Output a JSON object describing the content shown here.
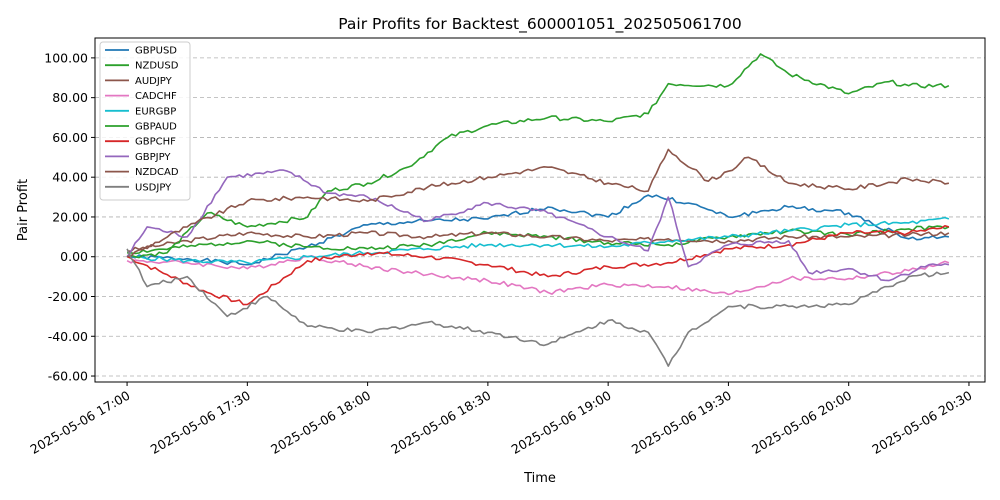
{
  "chart_data": {
    "type": "line",
    "title": "Pair Profits for Backtest_600001051_202505061700",
    "xlabel": "Time",
    "ylabel": "Pair Profit",
    "x_unit": "minutes",
    "ylim": [
      -63,
      110
    ],
    "xlim": [
      "2025-05-06 16:52",
      "2025-05-06 20:34"
    ],
    "grid": "horizontal dashed",
    "legend_position": "top-left",
    "x_ticks": [
      "2025-05-06 17:00",
      "2025-05-06 17:30",
      "2025-05-06 18:00",
      "2025-05-06 18:30",
      "2025-05-06 19:00",
      "2025-05-06 19:30",
      "2025-05-06 20:00",
      "2025-05-06 20:30"
    ],
    "y_ticks": [
      "100.00",
      "80.00",
      "60.00",
      "40.00",
      "20.00",
      "0.00",
      "-20.00",
      "-40.00",
      "-60.00"
    ],
    "series": [
      {
        "name": "GBPUSD",
        "color": "#1f77b4",
        "points": [
          [
            "2025-05-06 17:00",
            0
          ],
          [
            "2025-05-06 17:15",
            -1
          ],
          [
            "2025-05-06 17:30",
            -4
          ],
          [
            "2025-05-06 17:45",
            5
          ],
          [
            "2025-05-06 18:00",
            16
          ],
          [
            "2025-05-06 18:15",
            18
          ],
          [
            "2025-05-06 18:30",
            19
          ],
          [
            "2025-05-06 18:45",
            25
          ],
          [
            "2025-05-06 19:00",
            20
          ],
          [
            "2025-05-06 19:10",
            31
          ],
          [
            "2025-05-06 19:20",
            27
          ],
          [
            "2025-05-06 19:30",
            20
          ],
          [
            "2025-05-06 19:45",
            25
          ],
          [
            "2025-05-06 20:00",
            22
          ],
          [
            "2025-05-06 20:15",
            9
          ],
          [
            "2025-05-06 20:25",
            10
          ]
        ]
      },
      {
        "name": "NZDUSD",
        "color": "#2ca02c",
        "points": [
          [
            "2025-05-06 17:00",
            2
          ],
          [
            "2025-05-06 17:15",
            5
          ],
          [
            "2025-05-06 17:30",
            8
          ],
          [
            "2025-05-06 17:45",
            5
          ],
          [
            "2025-05-06 18:00",
            4
          ],
          [
            "2025-05-06 18:15",
            6
          ],
          [
            "2025-05-06 18:30",
            12
          ],
          [
            "2025-05-06 18:45",
            10
          ],
          [
            "2025-05-06 19:00",
            7
          ],
          [
            "2025-05-06 19:15",
            6
          ],
          [
            "2025-05-06 19:30",
            10
          ],
          [
            "2025-05-06 19:45",
            13
          ],
          [
            "2025-05-06 20:00",
            11
          ],
          [
            "2025-05-06 20:15",
            14
          ],
          [
            "2025-05-06 20:25",
            15
          ]
        ]
      },
      {
        "name": "AUDJPY",
        "color": "#8c564b",
        "points": [
          [
            "2025-05-06 17:00",
            3
          ],
          [
            "2025-05-06 17:15",
            8
          ],
          [
            "2025-05-06 17:30",
            12
          ],
          [
            "2025-05-06 17:45",
            10
          ],
          [
            "2025-05-06 18:00",
            12
          ],
          [
            "2025-05-06 18:15",
            10
          ],
          [
            "2025-05-06 18:30",
            12
          ],
          [
            "2025-05-06 18:45",
            10
          ],
          [
            "2025-05-06 19:00",
            8
          ],
          [
            "2025-05-06 19:15",
            9
          ],
          [
            "2025-05-06 19:30",
            8
          ],
          [
            "2025-05-06 19:45",
            10
          ],
          [
            "2025-05-06 20:00",
            10
          ],
          [
            "2025-05-06 20:15",
            11
          ],
          [
            "2025-05-06 20:25",
            12
          ]
        ]
      },
      {
        "name": "CADCHF",
        "color": "#e377c2",
        "points": [
          [
            "2025-05-06 17:00",
            -2
          ],
          [
            "2025-05-06 17:15",
            -3
          ],
          [
            "2025-05-06 17:30",
            -6
          ],
          [
            "2025-05-06 17:45",
            0
          ],
          [
            "2025-05-06 18:00",
            -5
          ],
          [
            "2025-05-06 18:15",
            -9
          ],
          [
            "2025-05-06 18:30",
            -12
          ],
          [
            "2025-05-06 18:45",
            -18
          ],
          [
            "2025-05-06 19:00",
            -14
          ],
          [
            "2025-05-06 19:15",
            -15
          ],
          [
            "2025-05-06 19:30",
            -19
          ],
          [
            "2025-05-06 19:45",
            -11
          ],
          [
            "2025-05-06 20:00",
            -11
          ],
          [
            "2025-05-06 20:15",
            -7
          ],
          [
            "2025-05-06 20:25",
            -3
          ]
        ]
      },
      {
        "name": "EURGBP",
        "color": "#17becf",
        "points": [
          [
            "2025-05-06 17:00",
            0
          ],
          [
            "2025-05-06 17:15",
            -2
          ],
          [
            "2025-05-06 17:30",
            -3
          ],
          [
            "2025-05-06 17:45",
            0
          ],
          [
            "2025-05-06 18:00",
            2
          ],
          [
            "2025-05-06 18:15",
            4
          ],
          [
            "2025-05-06 18:30",
            6
          ],
          [
            "2025-05-06 18:45",
            6
          ],
          [
            "2025-05-06 19:00",
            5
          ],
          [
            "2025-05-06 19:15",
            8
          ],
          [
            "2025-05-06 19:30",
            10
          ],
          [
            "2025-05-06 19:45",
            13
          ],
          [
            "2025-05-06 20:00",
            16
          ],
          [
            "2025-05-06 20:15",
            17
          ],
          [
            "2025-05-06 20:25",
            19
          ]
        ]
      },
      {
        "name": "GBPAUD",
        "color": "#2ca02c",
        "points": [
          [
            "2025-05-06 17:00",
            0
          ],
          [
            "2025-05-06 17:10",
            2
          ],
          [
            "2025-05-06 17:20",
            22
          ],
          [
            "2025-05-06 17:30",
            15
          ],
          [
            "2025-05-06 17:45",
            20
          ],
          [
            "2025-05-06 17:50",
            33
          ],
          [
            "2025-05-06 18:00",
            37
          ],
          [
            "2025-05-06 18:10",
            45
          ],
          [
            "2025-05-06 18:20",
            60
          ],
          [
            "2025-05-06 18:30",
            66
          ],
          [
            "2025-05-06 18:45",
            70
          ],
          [
            "2025-05-06 19:00",
            68
          ],
          [
            "2025-05-06 19:10",
            72
          ],
          [
            "2025-05-06 19:15",
            87
          ],
          [
            "2025-05-06 19:30",
            86
          ],
          [
            "2025-05-06 19:38",
            102
          ],
          [
            "2025-05-06 19:45",
            92
          ],
          [
            "2025-05-06 20:00",
            82
          ],
          [
            "2025-05-06 20:10",
            88
          ],
          [
            "2025-05-06 20:15",
            86
          ],
          [
            "2025-05-06 20:25",
            86
          ]
        ]
      },
      {
        "name": "GBPCHF",
        "color": "#d62728",
        "points": [
          [
            "2025-05-06 17:00",
            0
          ],
          [
            "2025-05-06 17:10",
            -9
          ],
          [
            "2025-05-06 17:20",
            -18
          ],
          [
            "2025-05-06 17:30",
            -24
          ],
          [
            "2025-05-06 17:45",
            -2
          ],
          [
            "2025-05-06 18:00",
            2
          ],
          [
            "2025-05-06 18:15",
            0
          ],
          [
            "2025-05-06 18:30",
            -4
          ],
          [
            "2025-05-06 18:45",
            -10
          ],
          [
            "2025-05-06 19:00",
            -5
          ],
          [
            "2025-05-06 19:15",
            -3
          ],
          [
            "2025-05-06 19:30",
            4
          ],
          [
            "2025-05-06 19:45",
            6
          ],
          [
            "2025-05-06 20:00",
            12
          ],
          [
            "2025-05-06 20:15",
            12
          ],
          [
            "2025-05-06 20:25",
            15
          ]
        ]
      },
      {
        "name": "GBPJPY",
        "color": "#9467bd",
        "points": [
          [
            "2025-05-06 17:00",
            0
          ],
          [
            "2025-05-06 17:05",
            15
          ],
          [
            "2025-05-06 17:15",
            10
          ],
          [
            "2025-05-06 17:25",
            40
          ],
          [
            "2025-05-06 17:40",
            43
          ],
          [
            "2025-05-06 17:50",
            32
          ],
          [
            "2025-05-06 18:00",
            30
          ],
          [
            "2025-05-06 18:15",
            18
          ],
          [
            "2025-05-06 18:30",
            27
          ],
          [
            "2025-05-06 18:45",
            22
          ],
          [
            "2025-05-06 19:00",
            10
          ],
          [
            "2025-05-06 19:10",
            3
          ],
          [
            "2025-05-06 19:15",
            30
          ],
          [
            "2025-05-06 19:20",
            -5
          ],
          [
            "2025-05-06 19:30",
            6
          ],
          [
            "2025-05-06 19:45",
            8
          ],
          [
            "2025-05-06 19:50",
            -8
          ],
          [
            "2025-05-06 20:00",
            -6
          ],
          [
            "2025-05-06 20:10",
            -12
          ],
          [
            "2025-05-06 20:20",
            -4
          ],
          [
            "2025-05-06 20:25",
            -4
          ]
        ]
      },
      {
        "name": "NZDCAD",
        "color": "#8c564b",
        "points": [
          [
            "2025-05-06 17:00",
            0
          ],
          [
            "2025-05-06 17:15",
            15
          ],
          [
            "2025-05-06 17:30",
            28
          ],
          [
            "2025-05-06 17:45",
            30
          ],
          [
            "2025-05-06 18:00",
            28
          ],
          [
            "2025-05-06 18:15",
            35
          ],
          [
            "2025-05-06 18:30",
            40
          ],
          [
            "2025-05-06 18:45",
            45
          ],
          [
            "2025-05-06 19:00",
            37
          ],
          [
            "2025-05-06 19:10",
            33
          ],
          [
            "2025-05-06 19:15",
            54
          ],
          [
            "2025-05-06 19:25",
            38
          ],
          [
            "2025-05-06 19:30",
            43
          ],
          [
            "2025-05-06 19:35",
            50
          ],
          [
            "2025-05-06 19:45",
            37
          ],
          [
            "2025-05-06 20:00",
            34
          ],
          [
            "2025-05-06 20:15",
            39
          ],
          [
            "2025-05-06 20:25",
            37
          ]
        ]
      },
      {
        "name": "USDJPY",
        "color": "#7f7f7f",
        "points": [
          [
            "2025-05-06 17:00",
            4
          ],
          [
            "2025-05-06 17:05",
            -15
          ],
          [
            "2025-05-06 17:15",
            -10
          ],
          [
            "2025-05-06 17:25",
            -30
          ],
          [
            "2025-05-06 17:35",
            -20
          ],
          [
            "2025-05-06 17:45",
            -35
          ],
          [
            "2025-05-06 18:00",
            -38
          ],
          [
            "2025-05-06 18:15",
            -33
          ],
          [
            "2025-05-06 18:30",
            -38
          ],
          [
            "2025-05-06 18:45",
            -44
          ],
          [
            "2025-05-06 19:00",
            -32
          ],
          [
            "2025-05-06 19:10",
            -38
          ],
          [
            "2025-05-06 19:15",
            -55
          ],
          [
            "2025-05-06 19:20",
            -38
          ],
          [
            "2025-05-06 19:30",
            -25
          ],
          [
            "2025-05-06 19:45",
            -25
          ],
          [
            "2025-05-06 20:00",
            -24
          ],
          [
            "2025-05-06 20:10",
            -15
          ],
          [
            "2025-05-06 20:15",
            -10
          ],
          [
            "2025-05-06 20:25",
            -8
          ]
        ]
      }
    ]
  }
}
